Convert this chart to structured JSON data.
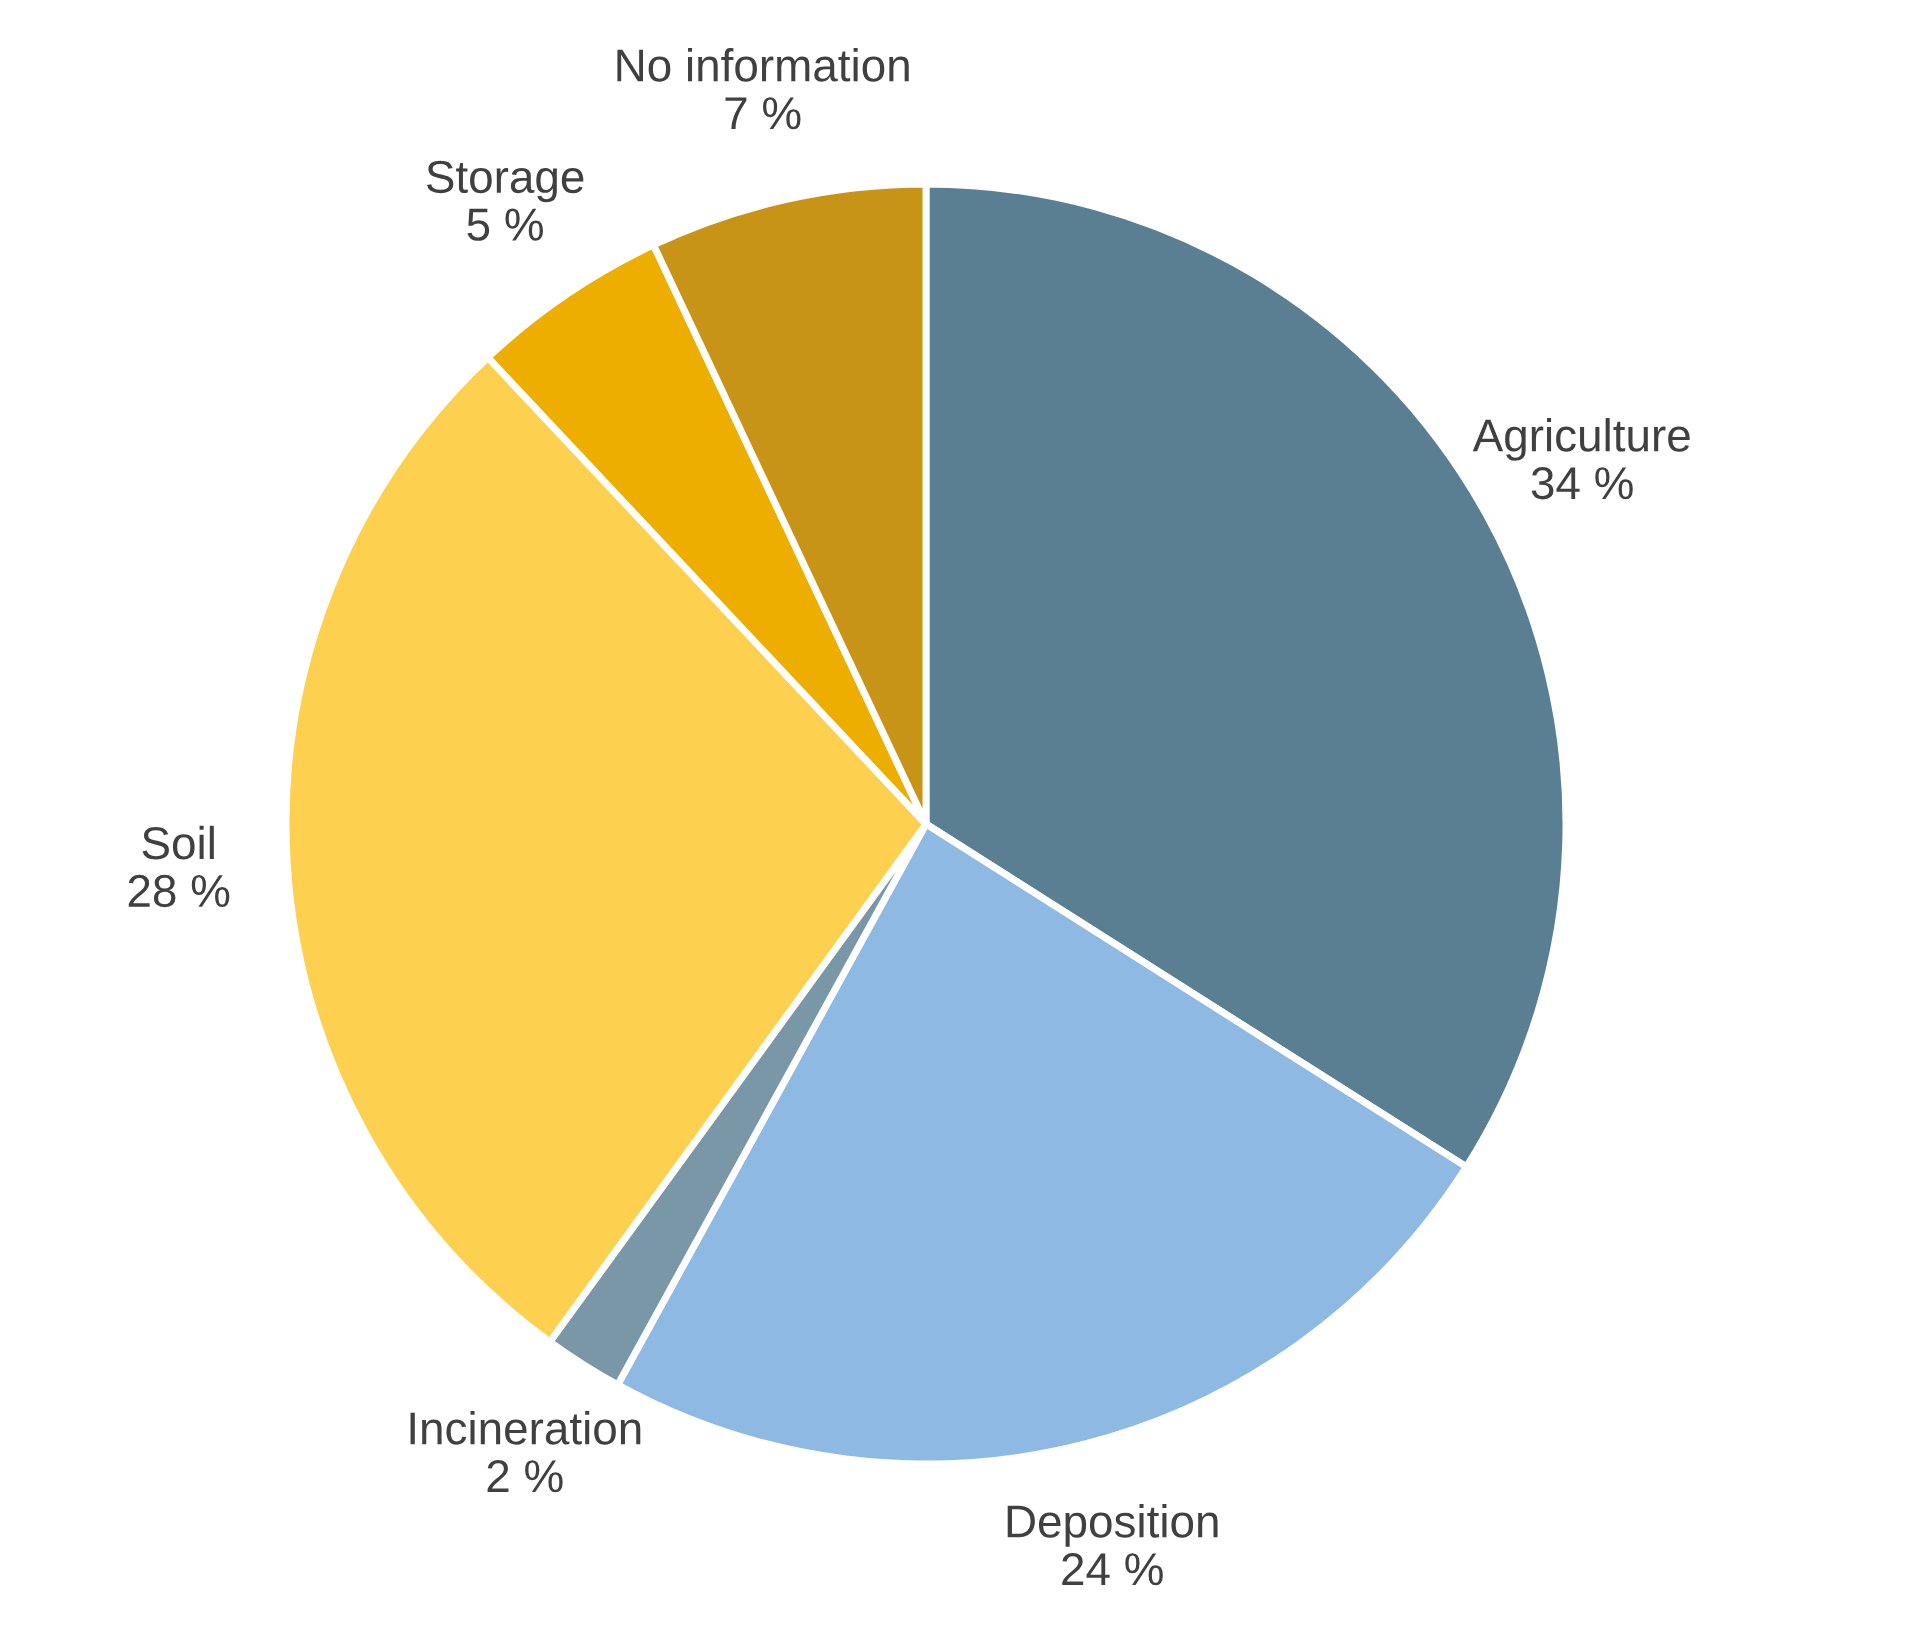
{
  "chart_data": {
    "type": "pie",
    "categories": [
      "Agriculture",
      "Deposition",
      "Incineration",
      "Soil",
      "Storage",
      "No information"
    ],
    "values": [
      34,
      24,
      2,
      28,
      5,
      7
    ],
    "value_labels": [
      "34 %",
      "24 %",
      "2 %",
      "28 %",
      "5 %",
      "7 %"
    ],
    "colors": [
      "#5a7f93",
      "#8db9e3",
      "#7a97a8",
      "#fdd14f",
      "#edae00",
      "#c89417"
    ]
  }
}
